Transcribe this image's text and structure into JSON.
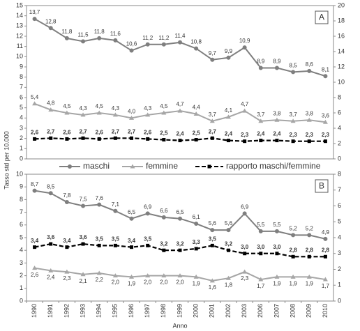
{
  "chart_data": [
    {
      "type": "line",
      "label": "A",
      "y_label": "Tasso std per 10.000",
      "ylim": [
        0,
        15
      ],
      "yticks": [
        0,
        1,
        2,
        3,
        4,
        5,
        6,
        7,
        8,
        9,
        10,
        11,
        12,
        13,
        14,
        15
      ],
      "y2lim": [
        0,
        20
      ],
      "y2ticks": [
        0,
        2,
        4,
        6,
        8,
        10,
        12,
        14,
        16,
        18,
        20
      ],
      "series": [
        {
          "name": "maschi",
          "color": "#7f7f7f",
          "marker": "circle",
          "values": [
            13.7,
            12.8,
            11.8,
            11.5,
            11.8,
            11.6,
            10.6,
            11.2,
            11.2,
            11.4,
            10.8,
            9.7,
            9.9,
            10.9,
            8.9,
            8.9,
            8.5,
            8.6,
            8.1
          ],
          "value_labels": [
            "13,7",
            "12,8",
            "11,8",
            "11,5",
            "11,8",
            "11,6",
            "10,6",
            "11,2",
            "11,2",
            "11,4",
            "10,8",
            "9,7",
            "9,9",
            "10,9",
            "8,9",
            "8,9",
            "8,5",
            "8,6",
            "8,1"
          ]
        },
        {
          "name": "femmine",
          "color": "#a6a6a6",
          "marker": "triangle",
          "values": [
            5.4,
            4.8,
            4.5,
            4.3,
            4.5,
            4.3,
            4.0,
            4.3,
            4.5,
            4.7,
            4.4,
            3.7,
            4.1,
            4.7,
            3.7,
            3.8,
            3.7,
            3.8,
            3.6
          ],
          "value_labels": [
            "5,4",
            "4,8",
            "4,5",
            "4,3",
            "4,5",
            "4,3",
            "4,0",
            "4,3",
            "4,5",
            "4,7",
            "4,4",
            "3,7",
            "4,1",
            "4,7",
            "3,7",
            "3,8",
            "3,7",
            "3,8",
            "3,6"
          ]
        },
        {
          "name": "rapporto maschi/femmine",
          "color": "#000000",
          "marker": "square",
          "dashed": true,
          "axis": "y2",
          "values": [
            2.6,
            2.7,
            2.6,
            2.7,
            2.6,
            2.7,
            2.7,
            2.6,
            2.5,
            2.4,
            2.5,
            2.7,
            2.4,
            2.3,
            2.4,
            2.4,
            2.3,
            2.3,
            2.3
          ],
          "value_labels": [
            "2,6",
            "2,7",
            "2,6",
            "2,7",
            "2,6",
            "2,7",
            "2,7",
            "2,6",
            "2,5",
            "2,4",
            "2,5",
            "2,7",
            "2,4",
            "2,3",
            "2,4",
            "2,4",
            "2,3",
            "2,3",
            "2,3"
          ]
        }
      ]
    },
    {
      "type": "line",
      "label": "B",
      "x_label": "Anno",
      "categories": [
        "1990",
        "1991",
        "1992",
        "1993",
        "1994",
        "1995",
        "1996",
        "1997",
        "1998",
        "1999",
        "2000",
        "2001",
        "2002",
        "2003",
        "2006",
        "2007",
        "2008",
        "2009",
        "2010"
      ],
      "ylim": [
        0,
        10
      ],
      "yticks": [
        0,
        1,
        2,
        3,
        4,
        5,
        6,
        7,
        8,
        9,
        10
      ],
      "y2lim": [
        0,
        8
      ],
      "y2ticks": [
        0,
        1,
        2,
        3,
        4,
        5,
        6,
        7,
        8
      ],
      "series": [
        {
          "color": "#7f7f7f",
          "marker": "circle",
          "values": [
            8.7,
            8.5,
            7.8,
            7.5,
            7.6,
            7.1,
            6.5,
            6.9,
            6.6,
            6.5,
            6.1,
            5.6,
            5.6,
            6.9,
            5.5,
            5.5,
            5.2,
            5.2,
            4.9
          ],
          "value_labels": [
            "8,7",
            "8,5",
            "7,8",
            "7,5",
            "7,6",
            "7,1",
            "6,5",
            "6,9",
            "6,6",
            "6,5",
            "6,1",
            "5,6",
            "5,6",
            "6,9",
            "5,5",
            "5,5",
            "5,2",
            "5,2",
            "4,9"
          ]
        },
        {
          "color": "#a6a6a6",
          "marker": "triangle",
          "values": [
            2.6,
            2.4,
            2.3,
            2.1,
            2.2,
            2.0,
            1.9,
            2.0,
            2.0,
            2.0,
            1.9,
            1.6,
            1.8,
            2.3,
            1.7,
            1.9,
            1.9,
            1.9,
            1.7
          ],
          "value_labels": [
            "2,6",
            "2,4",
            "2,3",
            "2,1",
            "2,2",
            "2,0",
            "1,9",
            "2,0",
            "2,0",
            "2,0",
            "1,9",
            "1,6",
            "1,8",
            "2,3",
            "1,7",
            "1,9",
            "1,9",
            "1,9",
            "1,7"
          ]
        },
        {
          "color": "#000000",
          "marker": "square",
          "dashed": true,
          "axis": "y2",
          "values": [
            3.4,
            3.6,
            3.4,
            3.6,
            3.5,
            3.5,
            3.4,
            3.5,
            3.2,
            3.2,
            3.3,
            3.5,
            3.2,
            3.0,
            3.0,
            3.0,
            2.8,
            2.8,
            2.8
          ],
          "value_labels": [
            "3,4",
            "3,6",
            "3,4",
            "3,6",
            "3,5",
            "3,5",
            "3,4",
            "3,5",
            "3,2",
            "3,2",
            "3,3",
            "3,5",
            "3,2",
            "3,0",
            "3,0",
            "3,0",
            "2,8",
            "2,8",
            "2,8"
          ]
        }
      ]
    }
  ]
}
